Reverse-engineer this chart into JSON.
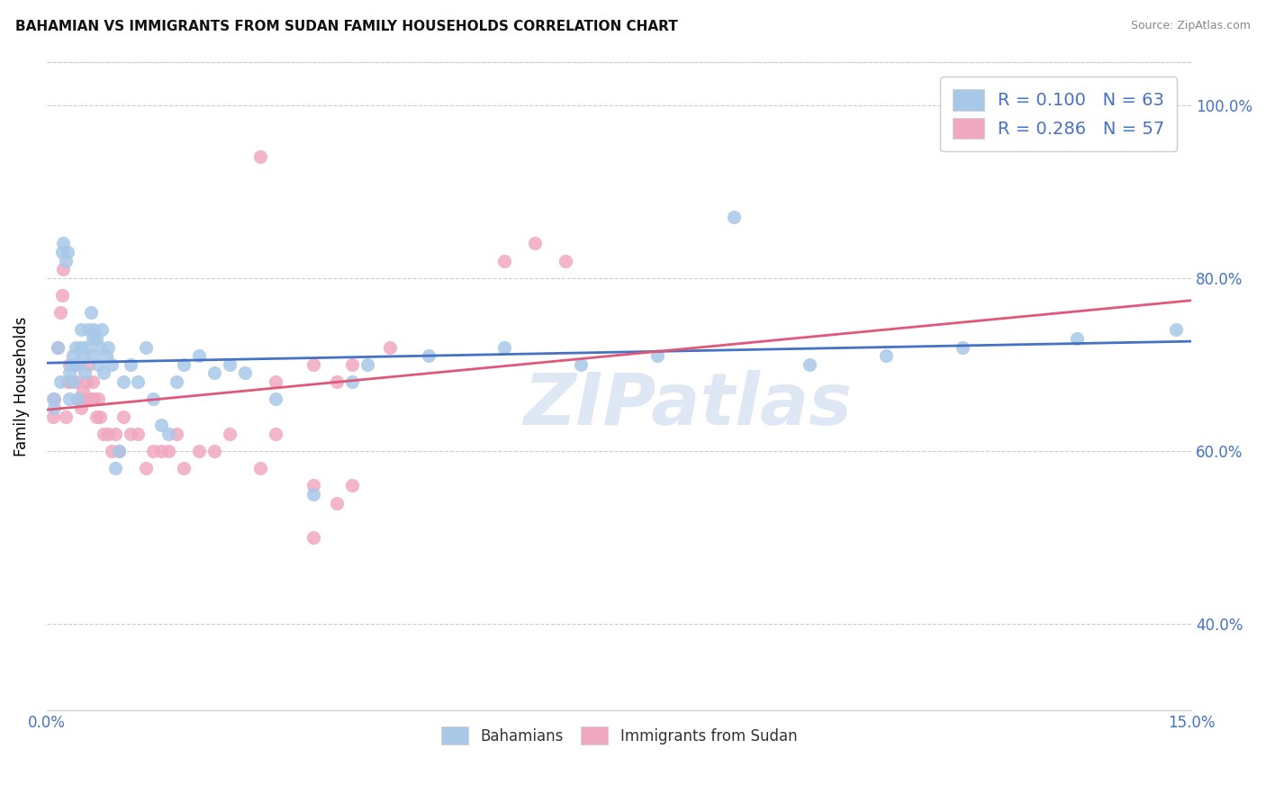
{
  "title": "BAHAMIAN VS IMMIGRANTS FROM SUDAN FAMILY HOUSEHOLDS CORRELATION CHART",
  "source": "Source: ZipAtlas.com",
  "ylabel": "Family Households",
  "watermark": "ZIPatlas",
  "blue_color": "#a8c8e8",
  "pink_color": "#f0a8c0",
  "blue_line_color": "#4472c4",
  "pink_line_color": "#e05878",
  "legend_text_color": "#4472c4",
  "blue_scatter": {
    "x": [
      0.0008,
      0.001,
      0.0015,
      0.0018,
      0.002,
      0.0022,
      0.0025,
      0.0028,
      0.003,
      0.003,
      0.0032,
      0.0035,
      0.0035,
      0.0038,
      0.004,
      0.0042,
      0.0045,
      0.0045,
      0.0048,
      0.005,
      0.0052,
      0.0055,
      0.0058,
      0.006,
      0.006,
      0.0062,
      0.0065,
      0.0068,
      0.007,
      0.0072,
      0.0075,
      0.0078,
      0.008,
      0.0085,
      0.009,
      0.0095,
      0.01,
      0.011,
      0.012,
      0.013,
      0.014,
      0.015,
      0.016,
      0.017,
      0.018,
      0.02,
      0.022,
      0.024,
      0.026,
      0.03,
      0.035,
      0.04,
      0.042,
      0.05,
      0.06,
      0.07,
      0.08,
      0.09,
      0.1,
      0.11,
      0.12,
      0.135,
      0.148
    ],
    "y": [
      0.66,
      0.65,
      0.72,
      0.68,
      0.83,
      0.84,
      0.82,
      0.83,
      0.66,
      0.69,
      0.7,
      0.68,
      0.71,
      0.72,
      0.66,
      0.7,
      0.72,
      0.74,
      0.71,
      0.69,
      0.72,
      0.74,
      0.76,
      0.71,
      0.73,
      0.74,
      0.73,
      0.7,
      0.72,
      0.74,
      0.69,
      0.71,
      0.72,
      0.7,
      0.58,
      0.6,
      0.68,
      0.7,
      0.68,
      0.72,
      0.66,
      0.63,
      0.62,
      0.68,
      0.7,
      0.71,
      0.69,
      0.7,
      0.69,
      0.66,
      0.55,
      0.68,
      0.7,
      0.71,
      0.72,
      0.7,
      0.71,
      0.87,
      0.7,
      0.71,
      0.72,
      0.73,
      0.74
    ]
  },
  "pink_scatter": {
    "x": [
      0.0008,
      0.001,
      0.0015,
      0.0018,
      0.002,
      0.0022,
      0.0025,
      0.0028,
      0.003,
      0.0032,
      0.0035,
      0.0038,
      0.004,
      0.0042,
      0.0045,
      0.0048,
      0.005,
      0.0052,
      0.0055,
      0.0058,
      0.006,
      0.0062,
      0.0065,
      0.0068,
      0.007,
      0.0075,
      0.008,
      0.0085,
      0.009,
      0.0095,
      0.01,
      0.011,
      0.012,
      0.013,
      0.014,
      0.015,
      0.016,
      0.017,
      0.018,
      0.02,
      0.022,
      0.024,
      0.028,
      0.03,
      0.035,
      0.035,
      0.038,
      0.04,
      0.028,
      0.03,
      0.035,
      0.038,
      0.04,
      0.045,
      0.06,
      0.064,
      0.068
    ],
    "y": [
      0.64,
      0.66,
      0.72,
      0.76,
      0.78,
      0.81,
      0.64,
      0.68,
      0.7,
      0.68,
      0.7,
      0.68,
      0.7,
      0.66,
      0.65,
      0.67,
      0.66,
      0.68,
      0.7,
      0.66,
      0.68,
      0.66,
      0.64,
      0.66,
      0.64,
      0.62,
      0.62,
      0.6,
      0.62,
      0.6,
      0.64,
      0.62,
      0.62,
      0.58,
      0.6,
      0.6,
      0.6,
      0.62,
      0.58,
      0.6,
      0.6,
      0.62,
      0.58,
      0.62,
      0.5,
      0.56,
      0.54,
      0.56,
      0.94,
      0.68,
      0.7,
      0.68,
      0.7,
      0.72,
      0.82,
      0.84,
      0.82
    ]
  },
  "xlim": [
    0,
    0.15
  ],
  "ylim": [
    0.3,
    1.05
  ],
  "yticks": [
    0.4,
    0.6,
    0.8,
    1.0
  ],
  "ytick_labels": [
    "40.0%",
    "60.0%",
    "80.0%",
    "100.0%"
  ],
  "xticks": [
    0.0,
    0.025,
    0.05,
    0.075,
    0.1,
    0.125,
    0.15
  ],
  "xtick_labels_show": [
    "0.0%",
    "",
    "",
    "",
    "",
    "",
    "15.0%"
  ],
  "figsize": [
    14.06,
    8.92
  ],
  "dpi": 100
}
